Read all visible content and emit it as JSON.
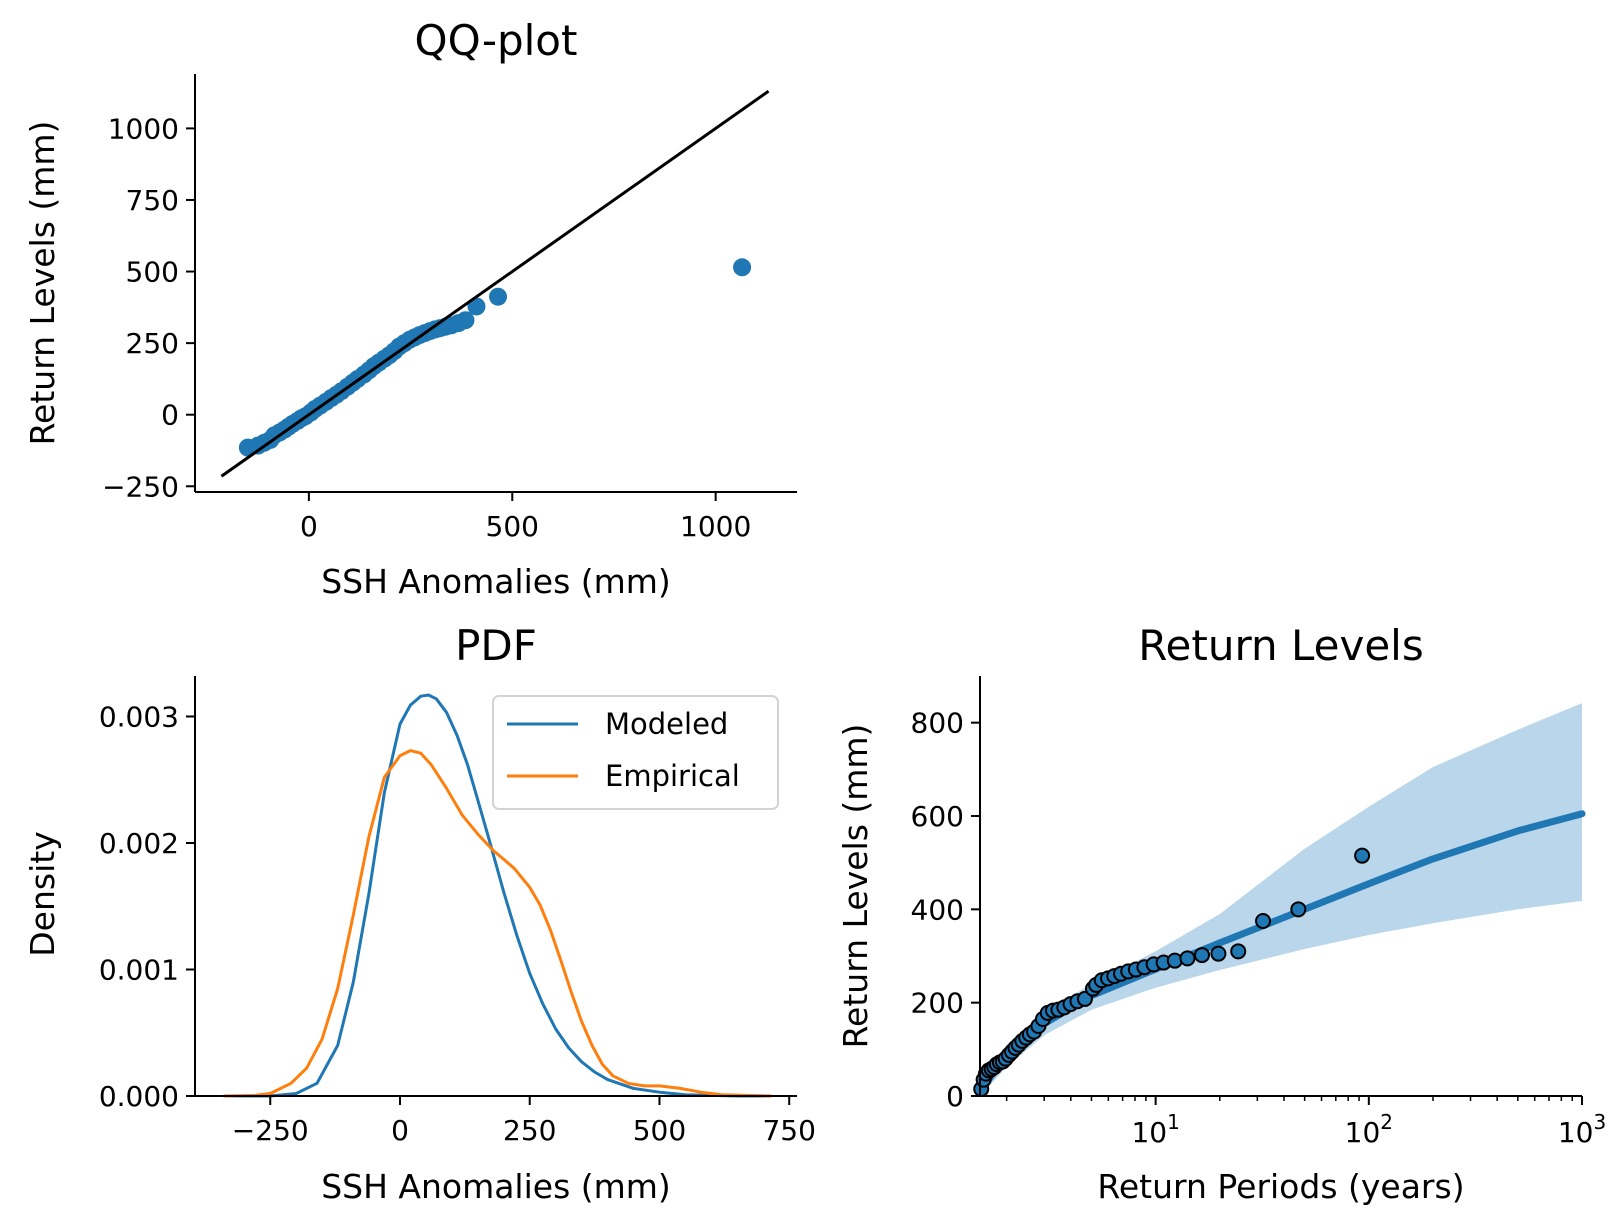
{
  "colors": {
    "blue": "#1f77b4",
    "orange": "#ff7f0e",
    "band": "#bad6ea"
  },
  "chart_data": [
    {
      "id": "qq",
      "type": "scatter",
      "title": "QQ-plot",
      "xlabel": "SSH Anomalies (mm)",
      "ylabel": "Return Levels (mm)",
      "xlim": [
        -280,
        1200
      ],
      "ylim": [
        -270,
        1190
      ],
      "xticks": [
        0,
        500,
        1000
      ],
      "xtick_labels": [
        "0",
        "500",
        "1000"
      ],
      "yticks": [
        -250,
        0,
        250,
        500,
        750,
        1000
      ],
      "ytick_labels": [
        "−250",
        "0",
        "250",
        "500",
        "750",
        "1000"
      ],
      "reference_line": {
        "x": [
          -215,
          1130
        ],
        "y": [
          -215,
          1130
        ]
      },
      "points": {
        "x": [
          -150,
          -125,
          -110,
          -95,
          -85,
          -72,
          -60,
          -50,
          -40,
          -28,
          -18,
          -8,
          5,
          15,
          28,
          42,
          55,
          68,
          80,
          95,
          108,
          120,
          135,
          148,
          160,
          172,
          185,
          198,
          210,
          222,
          235,
          248,
          260,
          272,
          285,
          298,
          310,
          322,
          335,
          350,
          368,
          385,
          412,
          465,
          1065
        ],
        "y": [
          -115,
          -108,
          -98,
          -88,
          -72,
          -62,
          -52,
          -42,
          -32,
          -22,
          -12,
          -5,
          8,
          20,
          32,
          45,
          58,
          70,
          82,
          98,
          112,
          125,
          140,
          155,
          170,
          182,
          195,
          208,
          222,
          238,
          250,
          262,
          270,
          278,
          285,
          292,
          298,
          302,
          307,
          312,
          320,
          330,
          378,
          412,
          515
        ]
      }
    },
    {
      "id": "pdf",
      "type": "line",
      "title": "PDF",
      "xlabel": "SSH Anomalies (mm)",
      "ylabel": "Density",
      "xlim": [
        -395,
        765
      ],
      "ylim": [
        0,
        0.00332
      ],
      "xticks": [
        -250,
        0,
        250,
        500,
        750
      ],
      "xtick_labels": [
        "−250",
        "0",
        "250",
        "500",
        "750"
      ],
      "yticks": [
        0,
        0.001,
        0.002,
        0.003
      ],
      "ytick_labels": [
        "0.000",
        "0.001",
        "0.002",
        "0.003"
      ],
      "legend": {
        "placement": "upper right",
        "entries": [
          "Modeled",
          "Empirical"
        ]
      },
      "series": [
        {
          "name": "Modeled",
          "x": [
            -340,
            -250,
            -200,
            -160,
            -120,
            -90,
            -60,
            -30,
            0,
            20,
            40,
            55,
            70,
            90,
            110,
            130,
            150,
            175,
            200,
            225,
            250,
            275,
            300,
            325,
            350,
            375,
            400,
            450,
            500,
            550,
            600,
            650,
            715
          ],
          "y": [
            0,
            0,
            2e-05,
            0.0001,
            0.0004,
            0.0009,
            0.0016,
            0.0024,
            0.00294,
            0.00309,
            0.00316,
            0.00317,
            0.00314,
            0.00303,
            0.00285,
            0.00262,
            0.00234,
            0.00198,
            0.00161,
            0.00127,
            0.00097,
            0.00073,
            0.00053,
            0.00038,
            0.00027,
            0.00019,
            0.00013,
            6e-05,
            3e-05,
            1e-05,
            5e-06,
            0,
            0
          ]
        },
        {
          "name": "Empirical",
          "x": [
            -340,
            -280,
            -250,
            -210,
            -180,
            -150,
            -120,
            -90,
            -60,
            -30,
            0,
            20,
            40,
            60,
            90,
            120,
            150,
            180,
            200,
            220,
            250,
            270,
            290,
            310,
            330,
            350,
            370,
            390,
            410,
            440,
            470,
            500,
            540,
            580,
            620,
            715
          ],
          "y": [
            0,
            5e-06,
            2e-05,
            0.0001,
            0.00022,
            0.00045,
            0.00085,
            0.00143,
            0.00205,
            0.00252,
            0.00269,
            0.00273,
            0.00271,
            0.00262,
            0.00243,
            0.00222,
            0.00207,
            0.00194,
            0.00187,
            0.0018,
            0.00165,
            0.00151,
            0.00131,
            0.00107,
            0.00082,
            0.00059,
            0.0004,
            0.00025,
            0.00016,
            0.0001,
            8e-05,
            8e-05,
            6e-05,
            3e-05,
            1e-05,
            0
          ]
        }
      ]
    },
    {
      "id": "rl",
      "type": "line",
      "title": "Return Levels",
      "xlabel": "Return Periods (years)",
      "ylabel": "Return Levels (mm)",
      "xscale": "log",
      "xlim": [
        1.5,
        1000
      ],
      "ylim": [
        0,
        900
      ],
      "xticks": [
        10,
        100,
        1000
      ],
      "xtick_base": "10",
      "xtick_exponents": [
        "1",
        "2",
        "3"
      ],
      "yticks": [
        0,
        200,
        400,
        600,
        800
      ],
      "ytick_labels": [
        "0",
        "200",
        "400",
        "600",
        "800"
      ],
      "model": {
        "x": [
          1.5,
          2,
          3,
          5,
          10,
          20,
          50,
          100,
          200,
          500,
          1000
        ],
        "y": [
          10,
          88,
          155,
          215,
          272,
          328,
          400,
          455,
          508,
          568,
          605
        ]
      },
      "band": {
        "x": [
          1.5,
          2,
          3,
          5,
          10,
          20,
          50,
          100,
          200,
          500,
          1000
        ],
        "lower": [
          0,
          62,
          130,
          185,
          232,
          270,
          315,
          345,
          370,
          400,
          418
        ],
        "upper": [
          20,
          110,
          180,
          240,
          310,
          390,
          530,
          620,
          705,
          785,
          842
        ]
      },
      "observed": {
        "x": [
          1.52,
          1.56,
          1.6,
          1.65,
          1.7,
          1.75,
          1.8,
          1.86,
          1.92,
          1.98,
          2.05,
          2.12,
          2.2,
          2.28,
          2.37,
          2.47,
          2.57,
          2.69,
          2.82,
          2.96,
          3.12,
          3.3,
          3.5,
          3.73,
          3.99,
          4.3,
          4.66,
          5.08,
          5.26,
          5.59,
          5.98,
          6.4,
          6.88,
          7.44,
          8.08,
          8.86,
          9.79,
          10.9,
          12.3,
          14.1,
          16.5,
          19.7,
          24.4,
          31.9,
          46.7,
          93.0
        ],
        "y": [
          15,
          35,
          48,
          55,
          58,
          62,
          68,
          72,
          74,
          80,
          88,
          95,
          103,
          110,
          118,
          125,
          132,
          138,
          150,
          165,
          178,
          183,
          185,
          190,
          197,
          203,
          208,
          230,
          238,
          248,
          252,
          257,
          262,
          267,
          271,
          276,
          282,
          286,
          290,
          295,
          302,
          305,
          310,
          375,
          400,
          515
        ]
      }
    }
  ]
}
